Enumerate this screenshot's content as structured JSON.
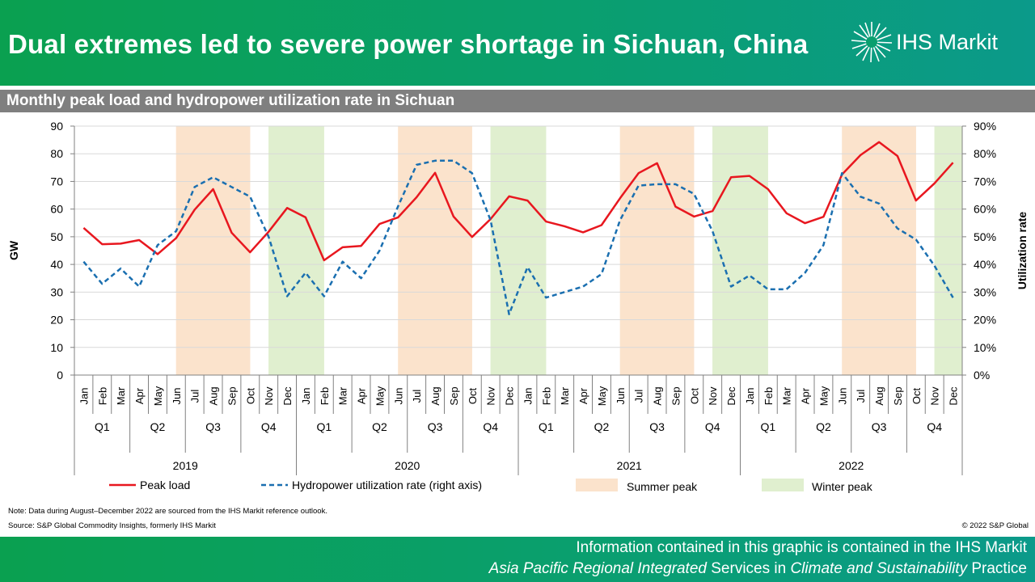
{
  "header": {
    "title": "Dual extremes led to severe power shortage in Sichuan,  China",
    "logo_text": "IHS Markit"
  },
  "subtitle": "Monthly  peak load and hydropower  utilization  rate in Sichuan",
  "legend": {
    "peak": "Peak load",
    "hydro": "Hydropower utilization rate (right axis)",
    "summer": "Summer peak",
    "winter": "Winter peak"
  },
  "colors": {
    "peak": "#e8171f",
    "hydro": "#1a6fb0",
    "summer": "#fbe3cc",
    "winter": "#e0efcf"
  },
  "notes": {
    "note": "Note: Data during August–December 2022 are sourced from the IHS  Markit reference outlook.",
    "source": "Source: S&P Global Commodity  Insights, formerly IHS  Markit",
    "copyright": "© 2022 S&P Global"
  },
  "footer": {
    "line1": "Information  contained  in this graphic is contained  in the IHS Markit",
    "line2_a": "Asia Pacific Regional Integrated",
    "line2_b": " Services in ",
    "line2_c": "Climate and Sustainability",
    "line2_d": " Practice"
  },
  "chart_data": {
    "type": "line",
    "ylabel": "GW",
    "y2label": "Utilization rate",
    "ylim": [
      0,
      90
    ],
    "y2lim": [
      0,
      0.9
    ],
    "yticks": [
      "0",
      "10",
      "20",
      "30",
      "40",
      "50",
      "60",
      "70",
      "80",
      "90"
    ],
    "y2ticks": [
      "0%",
      "10%",
      "20%",
      "30%",
      "40%",
      "50%",
      "60%",
      "70%",
      "80%",
      "90%"
    ],
    "months": [
      "Jan",
      "Feb",
      "Mar",
      "Apr",
      "May",
      "Jun",
      "Jul",
      "Aug",
      "Sep",
      "Oct",
      "Nov",
      "Dec"
    ],
    "quarters": [
      "Q1",
      "Q2",
      "Q3",
      "Q4"
    ],
    "years": [
      "2019",
      "2020",
      "2021",
      "2022"
    ],
    "series": [
      {
        "name": "Peak load",
        "values": [
          53.2,
          47.3,
          47.5,
          48.8,
          43.7,
          49.5,
          59.8,
          67.2,
          51.5,
          44.4,
          51.8,
          60.4,
          57.0,
          41.5,
          46.2,
          46.7,
          54.6,
          57.0,
          64.3,
          73.1,
          57.3,
          49.9,
          56.4,
          64.6,
          63.1,
          55.5,
          53.8,
          51.6,
          54.2,
          63.9,
          73.0,
          76.6,
          60.9,
          57.3,
          59.3,
          71.5,
          72.0,
          67.2,
          58.5,
          54.9,
          57.2,
          72.5,
          79.5,
          84.2,
          79.2,
          63.1,
          69.3,
          76.8
        ]
      },
      {
        "name": "Hydropower utilization rate (right axis)",
        "values": [
          0.41,
          0.33,
          0.385,
          0.32,
          0.47,
          0.52,
          0.68,
          0.715,
          0.68,
          0.645,
          0.5,
          0.285,
          0.37,
          0.285,
          0.41,
          0.35,
          0.45,
          0.61,
          0.76,
          0.775,
          0.775,
          0.73,
          0.56,
          0.22,
          0.39,
          0.28,
          0.3,
          0.32,
          0.365,
          0.56,
          0.685,
          0.69,
          0.69,
          0.655,
          0.52,
          0.32,
          0.36,
          0.31,
          0.31,
          0.37,
          0.47,
          0.73,
          0.645,
          0.62,
          0.53,
          0.49,
          0.395,
          0.28
        ]
      }
    ],
    "bands": [
      {
        "type": "summer",
        "from": 6,
        "to": 8
      },
      {
        "type": "winter",
        "from": 11,
        "to": 12
      },
      {
        "type": "summer",
        "from": 18,
        "to": 20
      },
      {
        "type": "winter",
        "from": 23,
        "to": 24
      },
      {
        "type": "summer",
        "from": 30,
        "to": 32
      },
      {
        "type": "winter",
        "from": 35,
        "to": 36
      },
      {
        "type": "summer",
        "from": 42,
        "to": 44
      },
      {
        "type": "winter",
        "from": 47,
        "to": 47
      }
    ]
  }
}
